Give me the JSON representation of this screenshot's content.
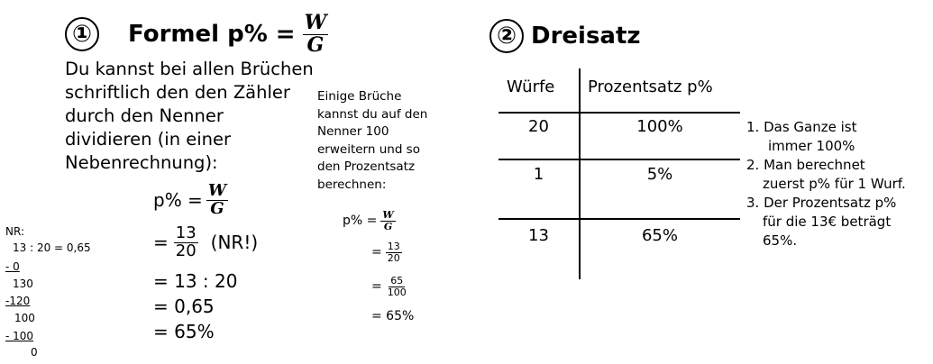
{
  "section1": {
    "number": "①",
    "heading": "Formel p% =",
    "frac_num": "W",
    "frac_den": "G",
    "intro_lines": [
      "Du kannst bei allen Brüchen",
      "schriftlich den den Zähler",
      "durch den Nenner",
      "dividieren (in einer",
      "Nebenrechnung):"
    ],
    "formula_prefix": "p% =",
    "formula_num": "W",
    "formula_den": "G",
    "step1_prefix": "=",
    "step1_num": "13",
    "step1_den": "20",
    "step1_note": "(NR!)",
    "step2": "= 13 : 20",
    "step3": "= 0,65",
    "step4": "= 65%",
    "nr": {
      "label": "NR:",
      "lines": [
        "13 : 20 = 0,65",
        "-  0",
        "130",
        "-120",
        "100",
        "-  100",
        "0"
      ]
    }
  },
  "middle": {
    "lines": [
      "Einige Brüche",
      "kannst du auf den",
      "Nenner 100",
      "erweitern und so",
      "den Prozentsatz",
      "berechnen:"
    ],
    "formula_prefix": "p% =",
    "formula_num": "W",
    "formula_den": "G",
    "f2_num": "13",
    "f2_den": "20",
    "f3_num": "65",
    "f3_den": "100",
    "result": "= 65%"
  },
  "section2": {
    "number": "②",
    "heading": "Dreisatz",
    "table": {
      "headers": [
        "Würfe",
        "Prozentsatz p%"
      ],
      "rows": [
        [
          "20",
          "100%"
        ],
        [
          "1",
          "5%"
        ],
        [
          "13",
          "65%"
        ]
      ]
    },
    "steps": [
      [
        "1. Das Ganze ist",
        "immer 100%"
      ],
      [
        "2. Man berechnet",
        "zuerst p% für 1 Wurf."
      ],
      [
        "3. Der Prozentsatz p%",
        "für die 13€ beträgt",
        "65%."
      ]
    ]
  }
}
